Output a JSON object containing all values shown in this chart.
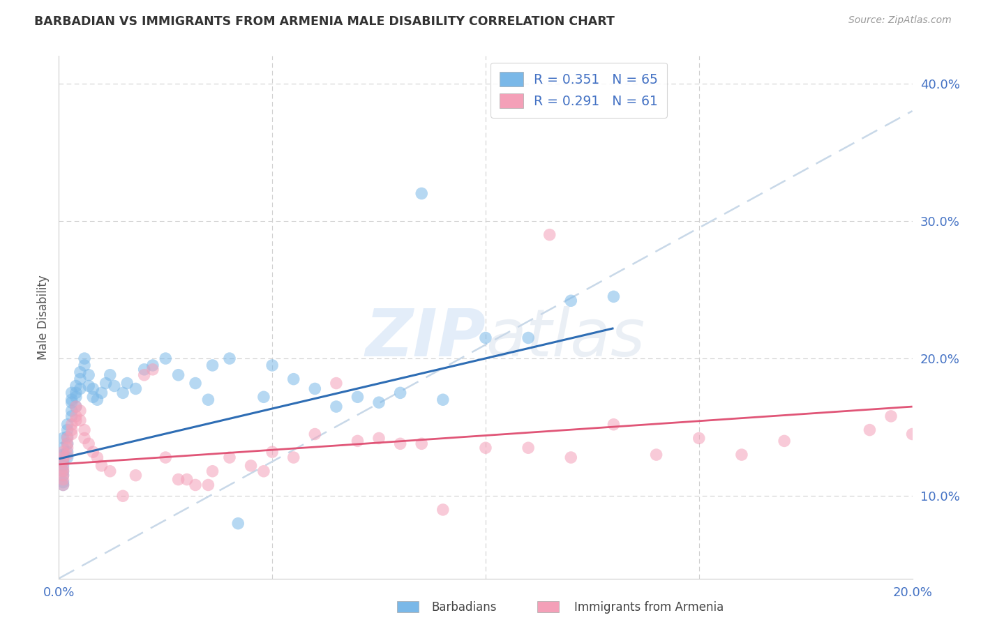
{
  "title": "BARBADIAN VS IMMIGRANTS FROM ARMENIA MALE DISABILITY CORRELATION CHART",
  "source": "Source: ZipAtlas.com",
  "ylabel": "Male Disability",
  "xlim": [
    0.0,
    0.2
  ],
  "ylim": [
    0.04,
    0.42
  ],
  "yticks": [
    0.1,
    0.2,
    0.3,
    0.4
  ],
  "ytick_labels": [
    "10.0%",
    "20.0%",
    "30.0%",
    "40.0%"
  ],
  "xticks": [
    0.0,
    0.05,
    0.1,
    0.15,
    0.2
  ],
  "xtick_labels": [
    "0.0%",
    "",
    "",
    "",
    "20.0%"
  ],
  "barbadian_R": 0.351,
  "barbadian_N": 65,
  "armenia_R": 0.291,
  "armenia_N": 61,
  "blue_color": "#7ab8e8",
  "pink_color": "#f4a0b8",
  "blue_line_color": "#2e6db4",
  "pink_line_color": "#e05577",
  "dashed_color": "#c8d8e8",
  "tick_color": "#4472c4",
  "grid_color": "#d0d0d0",
  "watermark_color": "#cddff0",
  "blue_line_x0": 0.0,
  "blue_line_y0": 0.127,
  "blue_line_x1": 0.13,
  "blue_line_y1": 0.222,
  "pink_line_x0": 0.0,
  "pink_line_y0": 0.123,
  "pink_line_x1": 0.2,
  "pink_line_y1": 0.165,
  "dash_line_x0": 0.0,
  "dash_line_y0": 0.04,
  "dash_line_x1": 0.2,
  "dash_line_y1": 0.38,
  "blue_x": [
    0.001,
    0.001,
    0.001,
    0.001,
    0.001,
    0.001,
    0.001,
    0.001,
    0.001,
    0.001,
    0.002,
    0.002,
    0.002,
    0.002,
    0.002,
    0.002,
    0.003,
    0.003,
    0.003,
    0.003,
    0.003,
    0.004,
    0.004,
    0.004,
    0.004,
    0.005,
    0.005,
    0.005,
    0.006,
    0.006,
    0.007,
    0.007,
    0.008,
    0.008,
    0.009,
    0.01,
    0.011,
    0.012,
    0.013,
    0.015,
    0.016,
    0.018,
    0.02,
    0.022,
    0.025,
    0.028,
    0.032,
    0.036,
    0.04,
    0.05,
    0.055,
    0.06,
    0.07,
    0.08,
    0.085,
    0.09,
    0.1,
    0.11,
    0.12,
    0.13,
    0.035,
    0.042,
    0.048,
    0.065,
    0.075
  ],
  "blue_y": [
    0.125,
    0.13,
    0.135,
    0.128,
    0.122,
    0.118,
    0.115,
    0.11,
    0.108,
    0.142,
    0.148,
    0.152,
    0.143,
    0.138,
    0.132,
    0.128,
    0.158,
    0.162,
    0.168,
    0.175,
    0.17,
    0.175,
    0.18,
    0.172,
    0.165,
    0.185,
    0.19,
    0.178,
    0.195,
    0.2,
    0.188,
    0.18,
    0.178,
    0.172,
    0.17,
    0.175,
    0.182,
    0.188,
    0.18,
    0.175,
    0.182,
    0.178,
    0.192,
    0.195,
    0.2,
    0.188,
    0.182,
    0.195,
    0.2,
    0.195,
    0.185,
    0.178,
    0.172,
    0.175,
    0.32,
    0.17,
    0.215,
    0.215,
    0.242,
    0.245,
    0.17,
    0.08,
    0.172,
    0.165,
    0.168
  ],
  "pink_x": [
    0.001,
    0.001,
    0.001,
    0.001,
    0.001,
    0.001,
    0.001,
    0.001,
    0.002,
    0.002,
    0.002,
    0.002,
    0.003,
    0.003,
    0.003,
    0.004,
    0.004,
    0.004,
    0.005,
    0.005,
    0.006,
    0.006,
    0.007,
    0.008,
    0.009,
    0.01,
    0.012,
    0.015,
    0.018,
    0.022,
    0.025,
    0.028,
    0.032,
    0.036,
    0.04,
    0.045,
    0.05,
    0.055,
    0.06,
    0.07,
    0.08,
    0.09,
    0.1,
    0.11,
    0.12,
    0.13,
    0.14,
    0.15,
    0.16,
    0.17,
    0.19,
    0.195,
    0.2,
    0.115,
    0.075,
    0.065,
    0.085,
    0.03,
    0.035,
    0.02,
    0.048
  ],
  "pink_y": [
    0.128,
    0.132,
    0.125,
    0.12,
    0.118,
    0.115,
    0.112,
    0.108,
    0.138,
    0.142,
    0.135,
    0.13,
    0.148,
    0.152,
    0.145,
    0.158,
    0.165,
    0.155,
    0.162,
    0.155,
    0.148,
    0.142,
    0.138,
    0.132,
    0.128,
    0.122,
    0.118,
    0.1,
    0.115,
    0.192,
    0.128,
    0.112,
    0.108,
    0.118,
    0.128,
    0.122,
    0.132,
    0.128,
    0.145,
    0.14,
    0.138,
    0.09,
    0.135,
    0.135,
    0.128,
    0.152,
    0.13,
    0.142,
    0.13,
    0.14,
    0.148,
    0.158,
    0.145,
    0.29,
    0.142,
    0.182,
    0.138,
    0.112,
    0.108,
    0.188,
    0.118
  ]
}
